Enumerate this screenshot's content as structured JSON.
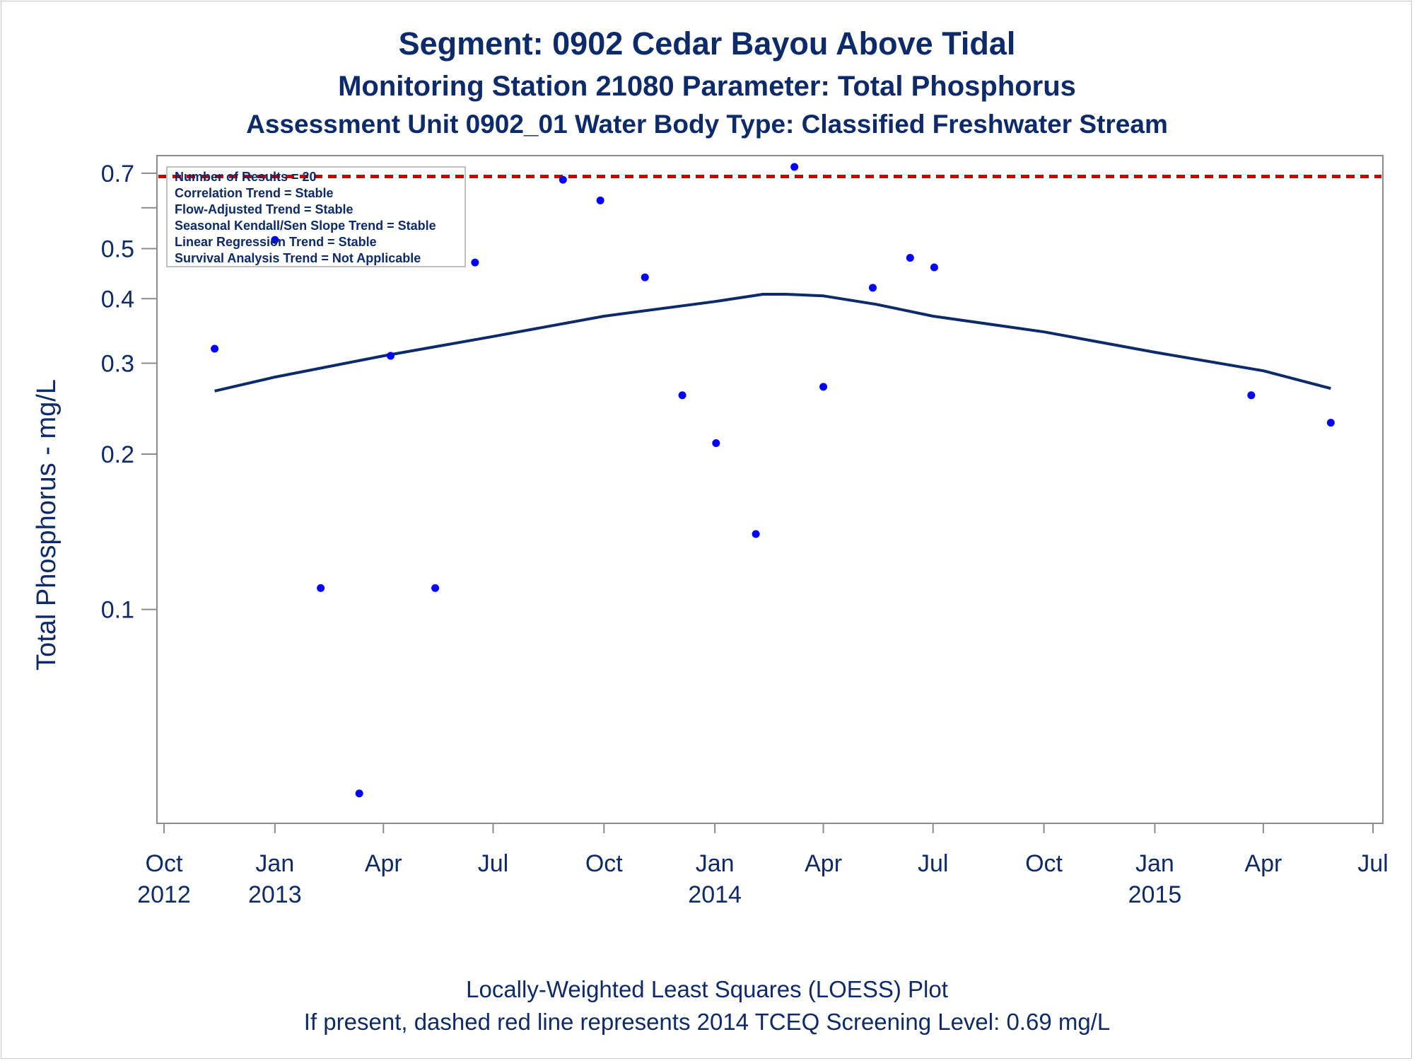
{
  "title": "Segment: 0902  Cedar Bayou Above Tidal",
  "subtitle1": "Monitoring Station 21080 Parameter: Total Phosphorus",
  "subtitle2": "Assessment Unit 0902_01   Water Body Type: Classified Freshwater Stream",
  "footnotes": [
    "Locally-Weighted Least Squares (LOESS) Plot",
    "If present, dashed red line represents 2014 TCEQ Screening Level: 0.69 mg/L"
  ],
  "stats_box": [
    "Number of Results = 20",
    "Correlation Trend = Stable",
    "Flow-Adjusted Trend = Stable",
    "Seasonal Kendall/Sen Slope Trend = Stable",
    "Linear Regression Trend = Stable",
    "Survival Analysis Trend = Not Applicable"
  ],
  "colors": {
    "text": "#0d2a6b",
    "points": "#0000ff",
    "loess": "#0d2a6b",
    "screening_line": "#cc0000",
    "axis": "#8c8c8c"
  },
  "chart_data": {
    "type": "scatter",
    "ylabel": "Total Phosphorus - mg/L",
    "y_scale": "log",
    "ylim": [
      0.04,
      0.72
    ],
    "xlim": [
      "2012-10-01",
      "2015-07-01"
    ],
    "y_ticks": [
      {
        "value": 0.1,
        "label": "0.1"
      },
      {
        "value": 0.2,
        "label": "0.2"
      },
      {
        "value": 0.3,
        "label": "0.3"
      },
      {
        "value": 0.4,
        "label": "0.4"
      },
      {
        "value": 0.5,
        "label": "0.5"
      },
      {
        "value": 0.6,
        "label": ""
      },
      {
        "value": 0.7,
        "label": "0.7"
      }
    ],
    "x_ticks": [
      {
        "date": "2012-10-01",
        "label": "Oct",
        "year": "2012"
      },
      {
        "date": "2013-01-01",
        "label": "Jan",
        "year": "2013"
      },
      {
        "date": "2013-04-01",
        "label": "Apr",
        "year": ""
      },
      {
        "date": "2013-07-01",
        "label": "Jul",
        "year": ""
      },
      {
        "date": "2013-10-01",
        "label": "Oct",
        "year": ""
      },
      {
        "date": "2014-01-01",
        "label": "Jan",
        "year": "2014"
      },
      {
        "date": "2014-04-01",
        "label": "Apr",
        "year": ""
      },
      {
        "date": "2014-07-01",
        "label": "Jul",
        "year": ""
      },
      {
        "date": "2014-10-01",
        "label": "Oct",
        "year": ""
      },
      {
        "date": "2015-01-01",
        "label": "Jan",
        "year": "2015"
      },
      {
        "date": "2015-04-01",
        "label": "Apr",
        "year": ""
      },
      {
        "date": "2015-07-01",
        "label": "Jul",
        "year": ""
      }
    ],
    "screening_level": 0.69,
    "points": [
      {
        "date": "2012-11-12",
        "value": 0.32
      },
      {
        "date": "2013-01-01",
        "value": 0.52
      },
      {
        "date": "2013-02-08",
        "value": 0.11
      },
      {
        "date": "2013-03-12",
        "value": 0.044
      },
      {
        "date": "2013-04-07",
        "value": 0.31
      },
      {
        "date": "2013-05-14",
        "value": 0.11
      },
      {
        "date": "2013-06-16",
        "value": 0.47
      },
      {
        "date": "2013-08-28",
        "value": 0.68
      },
      {
        "date": "2013-09-28",
        "value": 0.62
      },
      {
        "date": "2013-11-04",
        "value": 0.44
      },
      {
        "date": "2013-12-05",
        "value": 0.26
      },
      {
        "date": "2014-01-02",
        "value": 0.21
      },
      {
        "date": "2014-02-04",
        "value": 0.14
      },
      {
        "date": "2014-03-08",
        "value": 0.72
      },
      {
        "date": "2014-04-01",
        "value": 0.27
      },
      {
        "date": "2014-05-12",
        "value": 0.42
      },
      {
        "date": "2014-06-12",
        "value": 0.48
      },
      {
        "date": "2014-07-02",
        "value": 0.46
      },
      {
        "date": "2015-03-22",
        "value": 0.26
      },
      {
        "date": "2015-05-27",
        "value": 0.23
      }
    ],
    "loess": [
      {
        "date": "2012-11-12",
        "value": 0.265
      },
      {
        "date": "2013-01-01",
        "value": 0.282
      },
      {
        "date": "2013-04-01",
        "value": 0.31
      },
      {
        "date": "2013-07-01",
        "value": 0.338
      },
      {
        "date": "2013-10-01",
        "value": 0.37
      },
      {
        "date": "2014-01-01",
        "value": 0.395
      },
      {
        "date": "2014-02-10",
        "value": 0.408
      },
      {
        "date": "2014-03-01",
        "value": 0.408
      },
      {
        "date": "2014-04-01",
        "value": 0.405
      },
      {
        "date": "2014-05-15",
        "value": 0.39
      },
      {
        "date": "2014-07-01",
        "value": 0.37
      },
      {
        "date": "2014-10-01",
        "value": 0.345
      },
      {
        "date": "2015-01-01",
        "value": 0.315
      },
      {
        "date": "2015-04-01",
        "value": 0.29
      },
      {
        "date": "2015-05-27",
        "value": 0.268
      }
    ]
  }
}
